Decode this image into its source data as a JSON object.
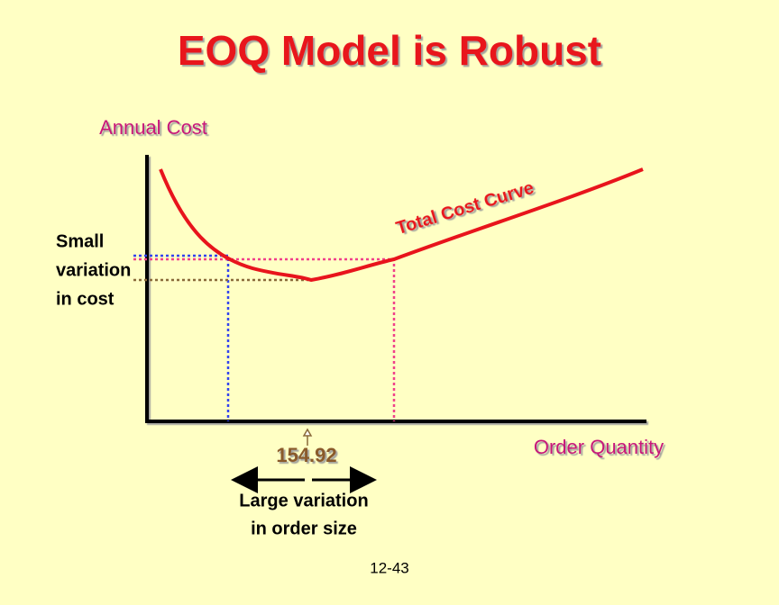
{
  "title": "EOQ Model is Robust",
  "axes": {
    "y_label": "Annual Cost",
    "x_label": "Order Quantity"
  },
  "curve_label": "Total Cost Curve",
  "cost_note": [
    "Small",
    "variation",
    "in cost"
  ],
  "eoq_label": "154.92",
  "quantity_note": [
    "Large variation",
    "in order size"
  ],
  "footer": "12-43"
}
